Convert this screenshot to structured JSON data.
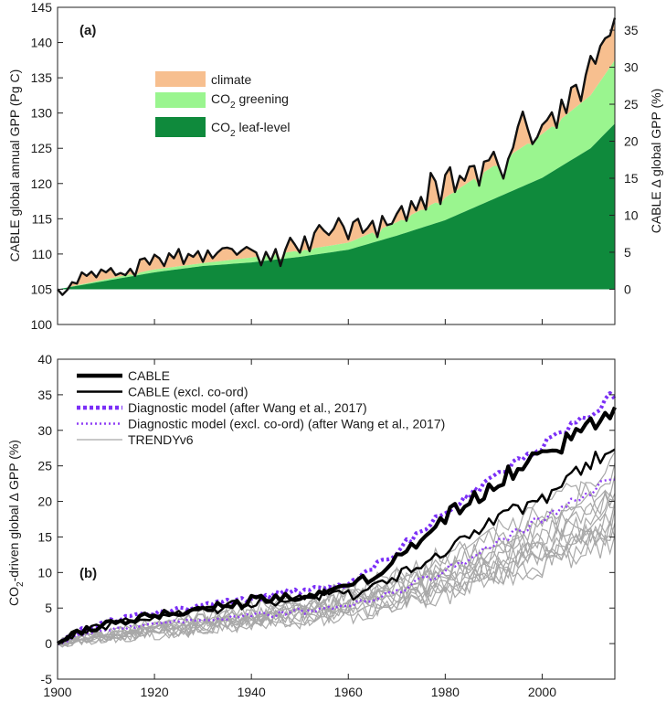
{
  "chart_data": [
    {
      "panel_label": "(a)",
      "type": "area",
      "ylabel": "CABLE global annual GPP (Pg C)",
      "ylabel_right": "CABLE Δ global GPP (%)",
      "ylim": [
        100,
        145
      ],
      "ylim_right": [
        -6.6667,
        35.0
      ],
      "y_ticks": [
        "100",
        "105",
        "110",
        "115",
        "120",
        "125",
        "130",
        "135",
        "140",
        "145"
      ],
      "y_ticks_right": [
        "0",
        "5",
        "10",
        "15",
        "20",
        "25",
        "30",
        "35"
      ],
      "xlim": [
        1900,
        2015
      ],
      "baseline": 105,
      "legend": {
        "position": "upper-left",
        "items": [
          {
            "label": "climate",
            "sub": "",
            "suffix": "",
            "color": "#f7bf8f"
          },
          {
            "label": "CO",
            "sub": "2",
            "suffix": " greening",
            "color": "#9af58f"
          },
          {
            "label": "CO",
            "sub": "2",
            "suffix": " leaf-level",
            "color": "#0f8a3c"
          }
        ]
      },
      "colors": {
        "climate": "#f7bf8f",
        "greening": "#9af58f",
        "leaf": "#0f8a3c",
        "total": "#111111"
      },
      "leaf_level": {
        "x": [
          1900,
          1910,
          1920,
          1930,
          1940,
          1950,
          1960,
          1970,
          1980,
          1990,
          2000,
          2010,
          2015
        ],
        "y": [
          105.0,
          106.2,
          107.4,
          108.3,
          108.8,
          109.6,
          110.6,
          112.6,
          114.8,
          117.8,
          120.8,
          125.0,
          128.5
        ]
      },
      "greening": {
        "x": [
          1900,
          1910,
          1920,
          1930,
          1940,
          1950,
          1960,
          1970,
          1980,
          1990,
          2000,
          2010,
          2015
        ],
        "y": [
          105.0,
          106.4,
          107.8,
          108.7,
          109.5,
          110.5,
          111.6,
          114.5,
          118.0,
          122.5,
          127.0,
          132.5,
          137.5
        ]
      },
      "total_gpp": {
        "x": [
          1900,
          1901,
          1902,
          1903,
          1904,
          1905,
          1906,
          1907,
          1908,
          1909,
          1910,
          1911,
          1912,
          1913,
          1914,
          1915,
          1916,
          1917,
          1918,
          1919,
          1920,
          1921,
          1922,
          1923,
          1924,
          1925,
          1926,
          1927,
          1928,
          1929,
          1930,
          1931,
          1932,
          1933,
          1934,
          1935,
          1936,
          1937,
          1938,
          1939,
          1940,
          1941,
          1942,
          1943,
          1944,
          1945,
          1946,
          1947,
          1948,
          1949,
          1950,
          1951,
          1952,
          1953,
          1954,
          1955,
          1956,
          1957,
          1958,
          1959,
          1960,
          1961,
          1962,
          1963,
          1964,
          1965,
          1966,
          1967,
          1968,
          1969,
          1970,
          1971,
          1972,
          1973,
          1974,
          1975,
          1976,
          1977,
          1978,
          1979,
          1980,
          1981,
          1982,
          1983,
          1984,
          1985,
          1986,
          1987,
          1988,
          1989,
          1990,
          1991,
          1992,
          1993,
          1994,
          1995,
          1996,
          1997,
          1998,
          1999,
          2000,
          2001,
          2002,
          2003,
          2004,
          2005,
          2006,
          2007,
          2008,
          2009,
          2010,
          2011,
          2012,
          2013,
          2014,
          2015
        ],
        "y": [
          105.0,
          104.2,
          104.9,
          106.0,
          105.8,
          107.4,
          106.9,
          107.5,
          106.7,
          107.8,
          107.4,
          108.0,
          107.0,
          107.3,
          107.0,
          107.9,
          106.9,
          109.2,
          109.4,
          108.5,
          109.9,
          109.4,
          108.3,
          110.1,
          109.4,
          110.7,
          108.6,
          110.0,
          109.6,
          110.4,
          108.9,
          110.5,
          109.4,
          110.2,
          110.8,
          110.9,
          110.7,
          109.9,
          110.5,
          111.0,
          110.6,
          110.2,
          108.4,
          110.3,
          109.0,
          110.7,
          108.3,
          110.6,
          112.3,
          111.3,
          110.2,
          112.5,
          110.4,
          113.0,
          114.1,
          113.3,
          112.7,
          113.6,
          115.1,
          113.9,
          112.1,
          114.5,
          115.0,
          113.0,
          113.7,
          114.7,
          112.4,
          115.4,
          114.1,
          114.3,
          115.7,
          116.8,
          114.7,
          117.5,
          116.2,
          118.1,
          116.3,
          121.5,
          120.3,
          117.1,
          121.2,
          122.3,
          118.8,
          121.1,
          120.4,
          122.4,
          122.5,
          119.7,
          123.1,
          123.3,
          124.5,
          122.5,
          120.7,
          123.5,
          125.1,
          128.1,
          130.2,
          127.8,
          125.6,
          126.6,
          128.3,
          129.0,
          130.1,
          127.9,
          131.9,
          130.0,
          133.6,
          134.0,
          131.7,
          135.4,
          138.1,
          137.0,
          139.5,
          140.6,
          141.0,
          143.5
        ]
      },
      "text": {
        "label": "(a)",
        "ylabel_left": "CABLE global annual GPP (Pg C)",
        "ylabel_right_pre": "CABLE ",
        "ylabel_right_delta": "Δ",
        "ylabel_right_post": " global GPP (%)"
      }
    },
    {
      "panel_label": "(b)",
      "type": "line",
      "ylabel": "CO2-driven global Δ GPP (%)",
      "ylim": [
        -5,
        40
      ],
      "y_ticks": [
        "-5",
        "0",
        "5",
        "10",
        "15",
        "20",
        "25",
        "30",
        "35",
        "40"
      ],
      "xlim": [
        1900,
        2015
      ],
      "x_ticks": [
        "1900",
        "1920",
        "1940",
        "1960",
        "1980",
        "2000"
      ],
      "legend": {
        "position": "upper-left",
        "items": [
          {
            "label": "CABLE",
            "color": "#000000",
            "style": "solid-thick"
          },
          {
            "label": "CABLE (excl. co-ord)",
            "color": "#000000",
            "style": "solid"
          },
          {
            "label": "Diagnostic model (after Wang et al., 2017)",
            "color": "#7b2ff7",
            "style": "dotted-thick"
          },
          {
            "label": "Diagnostic model (excl. co-ord) (after Wang et al., 2017)",
            "color": "#8f3ff5",
            "style": "dotted"
          },
          {
            "label": "TRENDYv6",
            "color": "#a8a8a8",
            "style": "solid-thin"
          }
        ]
      },
      "series": [
        {
          "name": "CABLE",
          "color": "#000000",
          "x": [
            1900,
            1905,
            1910,
            1915,
            1920,
            1925,
            1930,
            1935,
            1940,
            1945,
            1950,
            1955,
            1960,
            1965,
            1970,
            1975,
            1980,
            1985,
            1990,
            1995,
            2000,
            2005,
            2010,
            2015
          ],
          "y": [
            0.0,
            1.8,
            2.6,
            3.4,
            3.8,
            4.3,
            4.9,
            5.6,
            6.0,
            6.5,
            7.0,
            7.6,
            7.5,
            9.6,
            11.8,
            14.8,
            17.8,
            20.0,
            22.5,
            24.8,
            26.5,
            28.5,
            31.0,
            33.5
          ]
        },
        {
          "name": "CABLE (excl. co-ord)",
          "color": "#000000",
          "x": [
            1900,
            1905,
            1910,
            1915,
            1920,
            1925,
            1930,
            1935,
            1940,
            1945,
            1950,
            1955,
            1960,
            1965,
            1970,
            1975,
            1980,
            1985,
            1990,
            1995,
            2000,
            2005,
            2010,
            2015
          ],
          "y": [
            0.0,
            1.8,
            2.5,
            3.2,
            3.6,
            4.1,
            4.6,
            5.2,
            5.6,
            6.1,
            6.6,
            7.0,
            6.8,
            8.0,
            9.6,
            11.5,
            13.2,
            14.9,
            16.9,
            18.8,
            20.6,
            22.6,
            25.4,
            27.5
          ]
        },
        {
          "name": "Diagnostic model (after Wang et al., 2017)",
          "color": "#7b2ff7",
          "x": [
            1900,
            1905,
            1910,
            1915,
            1920,
            1925,
            1930,
            1935,
            1940,
            1945,
            1950,
            1955,
            1960,
            1965,
            1970,
            1975,
            1980,
            1985,
            1990,
            1995,
            2000,
            2005,
            2010,
            2015
          ],
          "y": [
            0.0,
            2.0,
            3.0,
            3.8,
            4.3,
            4.8,
            5.3,
            5.9,
            6.4,
            6.9,
            7.5,
            8.0,
            8.3,
            10.5,
            13.0,
            15.8,
            18.5,
            20.8,
            23.3,
            25.7,
            27.8,
            30.0,
            32.5,
            35.0
          ]
        },
        {
          "name": "Diagnostic model (excl. co-ord) (after Wang et al., 2017)",
          "color": "#8f3ff5",
          "x": [
            1900,
            1905,
            1910,
            1915,
            1920,
            1925,
            1930,
            1935,
            1940,
            1945,
            1950,
            1955,
            1960,
            1965,
            1970,
            1975,
            1980,
            1985,
            1990,
            1995,
            2000,
            2005,
            2010,
            2015
          ],
          "y": [
            0.0,
            1.3,
            1.9,
            2.4,
            2.8,
            3.1,
            3.4,
            3.7,
            4.0,
            4.2,
            4.5,
            4.9,
            5.3,
            6.2,
            7.4,
            8.8,
            10.3,
            11.8,
            13.8,
            15.8,
            17.5,
            19.3,
            21.5,
            23.8
          ]
        },
        {
          "name": "TRENDYv6",
          "color": "#a8a8a8",
          "x": [
            1900,
            1905,
            1910,
            1915,
            1920,
            1925,
            1930,
            1935,
            1940,
            1945,
            1950,
            1955,
            1960,
            1965,
            1970,
            1975,
            1980,
            1985,
            1990,
            1995,
            2000,
            2005,
            2010,
            2015
          ],
          "y": [
            0.0,
            0.6,
            1.0,
            1.4,
            1.8,
            2.2,
            2.6,
            3.0,
            3.4,
            3.8,
            4.2,
            4.7,
            5.2,
            5.9,
            6.7,
            7.6,
            8.6,
            9.6,
            10.8,
            12.0,
            13.3,
            14.6,
            16.2,
            18.0
          ]
        }
      ],
      "text": {
        "label": "(b)",
        "ylabel_pre": "CO",
        "ylabel_sub": "2",
        "ylabel_post": "-driven global Δ GPP (%)"
      }
    }
  ]
}
